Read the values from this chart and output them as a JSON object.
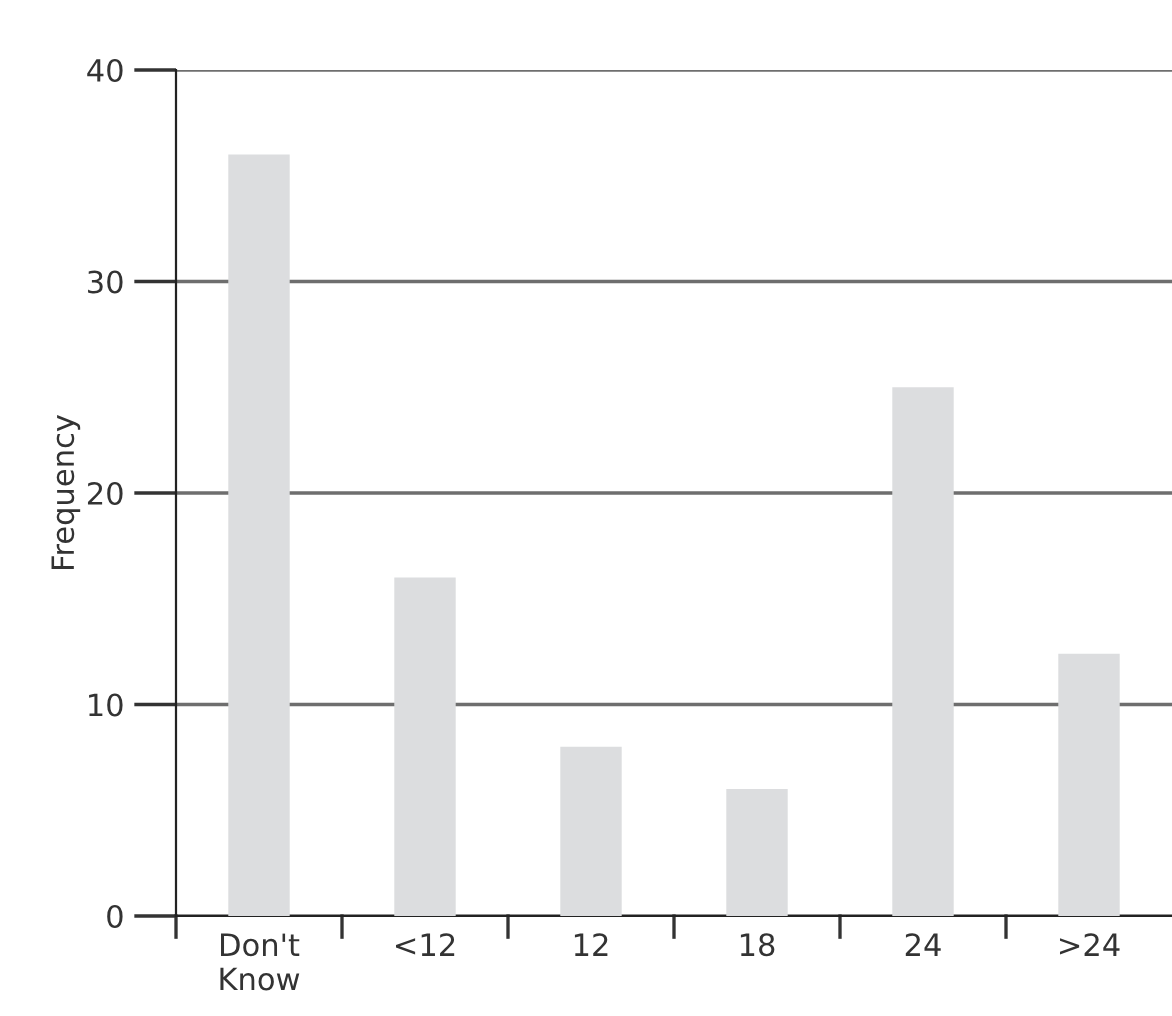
{
  "chart_data": {
    "type": "bar",
    "ylabel": "Frequency",
    "categories": [
      "Don't\nKnow",
      "<12",
      "12",
      "18",
      "24",
      ">24"
    ],
    "values": [
      36,
      16,
      8,
      6,
      25,
      12.4
    ],
    "color": "#dcdddf",
    "ylim": [
      0,
      40
    ],
    "yticks": [
      0,
      10,
      20,
      30,
      40
    ],
    "grid": "y",
    "legend": false
  }
}
